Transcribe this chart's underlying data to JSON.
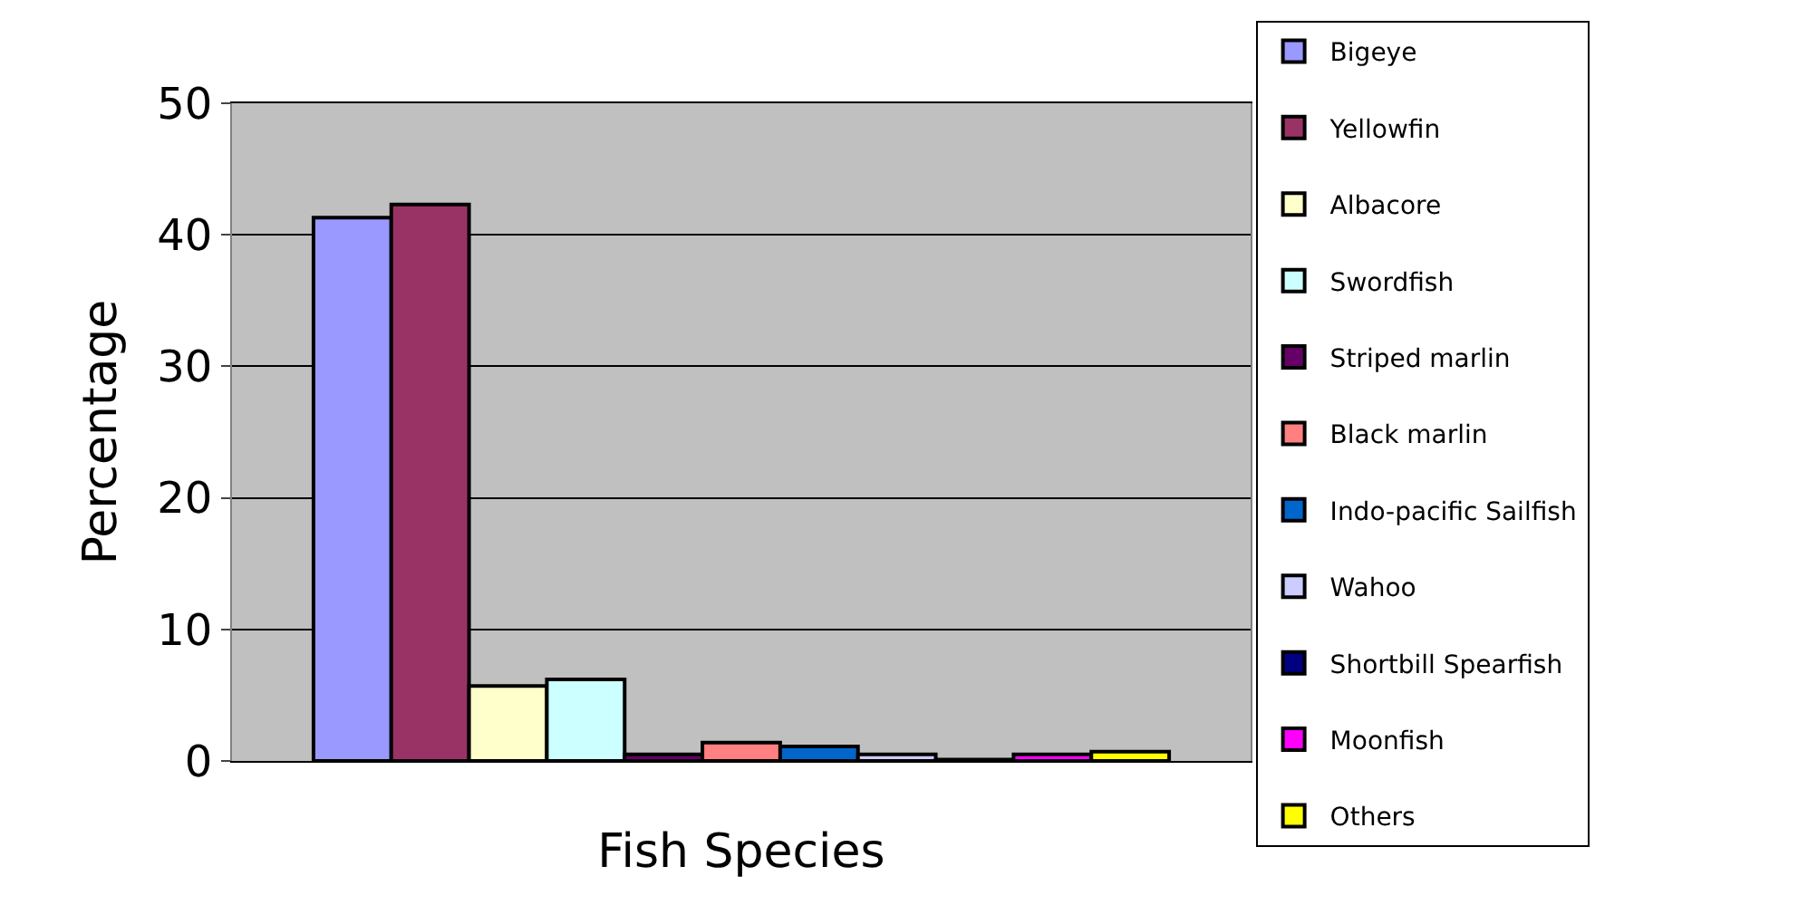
{
  "chart_data": {
    "type": "bar",
    "xlabel": "Fish Species",
    "ylabel": "Percentage",
    "categories": [
      null
    ],
    "series": [
      {
        "name": "Bigeye",
        "color": "#9999ff",
        "values": [
          41.3
        ]
      },
      {
        "name": "Yellowfin",
        "color": "#993366",
        "values": [
          42.3
        ]
      },
      {
        "name": "Albacore",
        "color": "#ffffcc",
        "values": [
          5.7
        ]
      },
      {
        "name": "Swordfish",
        "color": "#ccffff",
        "values": [
          6.2
        ]
      },
      {
        "name": "Striped marlin",
        "color": "#660066",
        "values": [
          0.5
        ]
      },
      {
        "name": "Black marlin",
        "color": "#ff8080",
        "values": [
          1.4
        ]
      },
      {
        "name": "Indo-pacific Sailfish",
        "color": "#0066cc",
        "values": [
          1.1
        ]
      },
      {
        "name": "Wahoo",
        "color": "#ccccff",
        "values": [
          0.5
        ]
      },
      {
        "name": "Shortbill Spearfish",
        "color": "#000080",
        "values": [
          0.1
        ]
      },
      {
        "name": "Moonfish",
        "color": "#ff00ff",
        "values": [
          0.5
        ]
      },
      {
        "name": "Others",
        "color": "#ffff00",
        "values": [
          0.7
        ]
      }
    ],
    "ylim": [
      0,
      50
    ],
    "yticks": [
      0,
      10,
      20,
      30,
      40,
      50
    ],
    "grid": "y",
    "legend": "right",
    "tick_labels": "y"
  }
}
